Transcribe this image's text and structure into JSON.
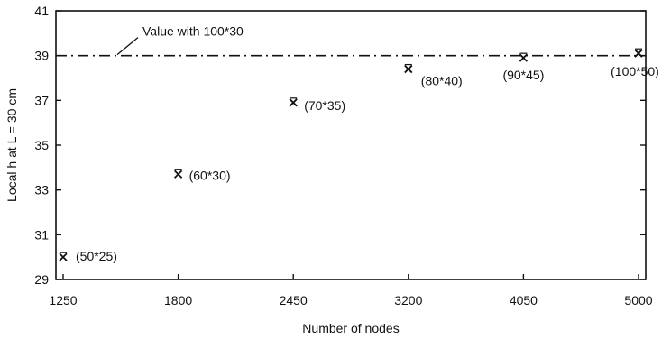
{
  "chart_data": {
    "type": "scatter",
    "title": "",
    "xlabel": "Number of nodes",
    "ylabel": "Local h at L = 30 cm",
    "x_scale": "categorical-evenly-spaced",
    "x_ticks": [
      "1250",
      "1800",
      "2450",
      "3200",
      "4050",
      "5000"
    ],
    "ylim": [
      29,
      41
    ],
    "y_ticks": [
      "29",
      "31",
      "33",
      "35",
      "37",
      "39",
      "41"
    ],
    "grid": false,
    "marker": "x",
    "points": [
      {
        "x": 1250,
        "y": 30.0,
        "label": "(50*25)"
      },
      {
        "x": 1800,
        "y": 33.7,
        "label": "(60*30)"
      },
      {
        "x": 2450,
        "y": 36.9,
        "label": "(70*35)"
      },
      {
        "x": 3200,
        "y": 38.4,
        "label": "(80*40)"
      },
      {
        "x": 4050,
        "y": 38.9,
        "label": "(90*45)"
      },
      {
        "x": 5000,
        "y": 39.1,
        "label": "(100*50)"
      }
    ],
    "reference_line": {
      "y": 39.0,
      "style": "dash-dot",
      "label": "Value with 100*30"
    }
  }
}
